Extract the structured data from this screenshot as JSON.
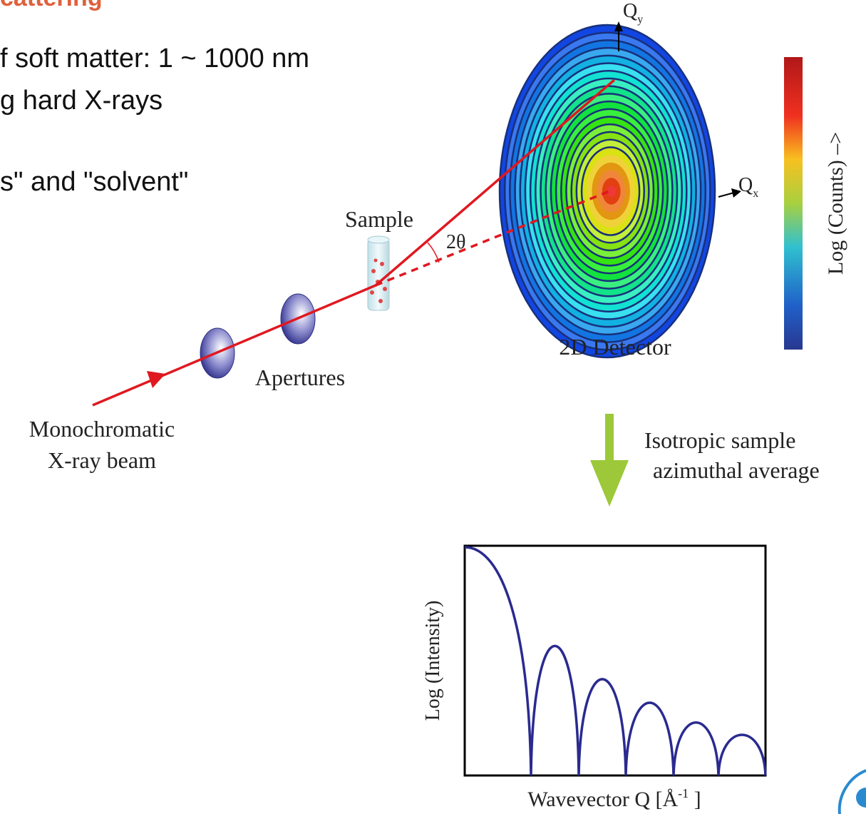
{
  "slide": {
    "title": "cattering",
    "bullets": [
      "f soft matter: 1 ~ 1000 nm",
      "g hard X-rays",
      "s\" and \"solvent\""
    ]
  },
  "diagram": {
    "qy": {
      "symbol": "Q",
      "sub": "y"
    },
    "qx": {
      "symbol": "Q",
      "sub": "x"
    },
    "colorbar_label": "Log (Counts) –>",
    "sample": "Sample",
    "angle": "2θ",
    "detector": "2D Detector",
    "apertures": "Apertures",
    "beam": [
      "Monochromatic",
      "X-ray beam"
    ],
    "process": [
      "Isotropic sample",
      "azimuthal average"
    ]
  },
  "plot": {
    "ylabel": "Log (Intensity)",
    "xlabel": "Wavevector Q [Å",
    "xlabel_sup": "-1",
    "xlabel_end": " ]"
  }
}
